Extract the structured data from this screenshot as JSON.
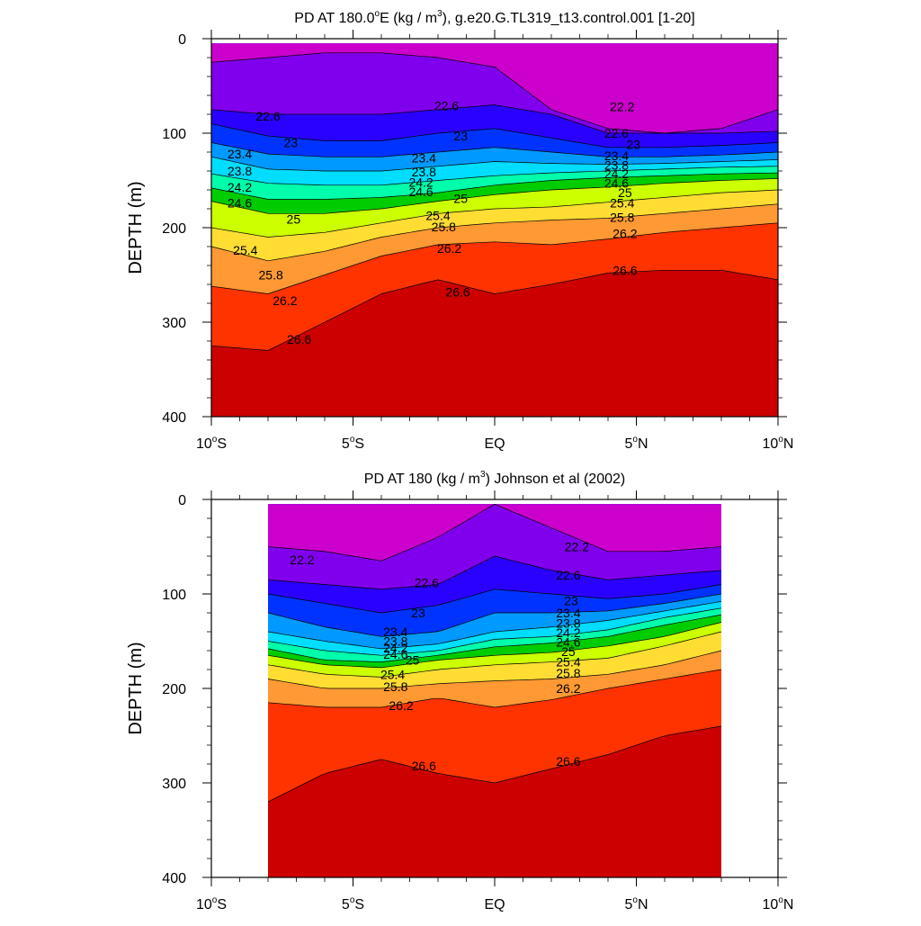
{
  "chart_data": [
    {
      "type": "contour",
      "title": "PD AT 180.0°E (kg / m³), g.e20.G.TL319_t13.control.001 [1-20]",
      "title_parts": {
        "prefix": "PD AT 180.0",
        "deg": "o",
        "mid": "E (kg / m",
        "sup": "3",
        "suffix": "), g.e20.G.TL319_t13.control.001 [1-20]"
      },
      "ylabel": "DEPTH (m)",
      "xlabel": "",
      "xlim": [
        -10,
        10
      ],
      "ylim": [
        0,
        400
      ],
      "y_reversed": true,
      "x_ticks": [
        {
          "value": -10,
          "num": "10",
          "deg": "o",
          "hemi": "S"
        },
        {
          "value": -5,
          "num": "5",
          "deg": "o",
          "hemi": "S"
        },
        {
          "value": 0,
          "num": "EQ",
          "deg": "",
          "hemi": ""
        },
        {
          "value": 5,
          "num": "5",
          "deg": "o",
          "hemi": "N"
        },
        {
          "value": 10,
          "num": "10",
          "deg": "o",
          "hemi": "N"
        }
      ],
      "y_ticks": [
        0,
        100,
        200,
        300,
        400
      ],
      "data_extent_x": [
        -10,
        10
      ],
      "data_extent_y": [
        5,
        400
      ],
      "contour_levels": [
        22.0,
        22.2,
        22.4,
        22.6,
        22.8,
        23.0,
        23.2,
        23.4,
        23.6,
        23.8,
        24.0,
        24.2,
        24.4,
        24.6,
        24.8,
        25.0,
        25.2,
        25.4,
        25.6,
        25.8,
        26.0,
        26.2,
        26.4,
        26.6
      ],
      "field": {
        "x": [
          -10,
          -8,
          -6,
          -4,
          -2,
          0,
          2,
          4,
          6,
          8,
          10
        ],
        "isopycnal_depths": {
          "22.2": [
            25,
            20,
            15,
            15,
            20,
            30,
            75,
            95,
            100,
            95,
            75
          ],
          "22.6": [
            75,
            80,
            80,
            80,
            75,
            70,
            80,
            100,
            100,
            100,
            98
          ],
          "23": [
            90,
            103,
            108,
            108,
            100,
            95,
            105,
            115,
            115,
            113,
            110
          ],
          "23.4": [
            110,
            122,
            125,
            125,
            120,
            115,
            120,
            125,
            125,
            123,
            120
          ],
          "23.8": [
            125,
            138,
            140,
            140,
            135,
            130,
            132,
            133,
            132,
            130,
            128
          ],
          "24.2": [
            143,
            153,
            155,
            155,
            150,
            145,
            142,
            140,
            138,
            136,
            135
          ],
          "24.6": [
            158,
            170,
            170,
            168,
            163,
            155,
            150,
            147,
            145,
            143,
            142
          ],
          "25": [
            172,
            185,
            185,
            180,
            172,
            165,
            160,
            157,
            153,
            150,
            148
          ],
          "25.4": [
            200,
            210,
            205,
            195,
            185,
            180,
            178,
            173,
            168,
            163,
            160
          ],
          "25.8": [
            220,
            235,
            225,
            210,
            200,
            195,
            192,
            190,
            185,
            180,
            175
          ],
          "26.2": [
            262,
            270,
            250,
            230,
            218,
            215,
            218,
            212,
            205,
            200,
            195
          ],
          "26.6": [
            325,
            330,
            300,
            270,
            255,
            270,
            260,
            248,
            245,
            245,
            255
          ]
        }
      },
      "contour_labels": [
        {
          "text": "22.6",
          "x": -8.0,
          "y": 82
        },
        {
          "text": "22.6",
          "x": -1.7,
          "y": 71
        },
        {
          "text": "22.2",
          "x": 4.5,
          "y": 72
        },
        {
          "text": "23",
          "x": -7.2,
          "y": 110
        },
        {
          "text": "23",
          "x": -1.2,
          "y": 103
        },
        {
          "text": "22.6",
          "x": 4.3,
          "y": 100
        },
        {
          "text": "23.4",
          "x": -9.0,
          "y": 122
        },
        {
          "text": "23.4",
          "x": -2.5,
          "y": 126
        },
        {
          "text": "23",
          "x": 4.9,
          "y": 112
        },
        {
          "text": "23.8",
          "x": -9.0,
          "y": 140
        },
        {
          "text": "23.8",
          "x": -2.5,
          "y": 141
        },
        {
          "text": "23.4",
          "x": 4.3,
          "y": 124
        },
        {
          "text": "23.8",
          "x": 4.3,
          "y": 134
        },
        {
          "text": "24.2",
          "x": -9.0,
          "y": 157
        },
        {
          "text": "24.2",
          "x": -2.6,
          "y": 152
        },
        {
          "text": "24.2",
          "x": 4.3,
          "y": 143
        },
        {
          "text": "24.6",
          "x": -9.0,
          "y": 174
        },
        {
          "text": "24.6",
          "x": -2.6,
          "y": 162
        },
        {
          "text": "24.6",
          "x": 4.3,
          "y": 153
        },
        {
          "text": "25",
          "x": -1.2,
          "y": 169
        },
        {
          "text": "25",
          "x": 4.6,
          "y": 163
        },
        {
          "text": "25",
          "x": -7.1,
          "y": 191
        },
        {
          "text": "25.4",
          "x": -2.0,
          "y": 187
        },
        {
          "text": "25.4",
          "x": 4.5,
          "y": 174
        },
        {
          "text": "25.8",
          "x": -1.8,
          "y": 199
        },
        {
          "text": "25.8",
          "x": 4.5,
          "y": 189
        },
        {
          "text": "25.4",
          "x": -8.8,
          "y": 224
        },
        {
          "text": "25.8",
          "x": -7.9,
          "y": 250
        },
        {
          "text": "26.2",
          "x": -1.6,
          "y": 222
        },
        {
          "text": "26.2",
          "x": 4.6,
          "y": 206
        },
        {
          "text": "26.2",
          "x": -7.4,
          "y": 277
        },
        {
          "text": "26.6",
          "x": -1.3,
          "y": 268
        },
        {
          "text": "26.6",
          "x": 4.6,
          "y": 245
        },
        {
          "text": "26.6",
          "x": -6.9,
          "y": 318
        }
      ]
    },
    {
      "type": "contour",
      "title": "PD AT 180 (kg / m³) Johnson et al (2002)",
      "title_parts": {
        "prefix": "PD AT 180 (kg / m",
        "sup": "3",
        "suffix": ") Johnson et al (2002)"
      },
      "ylabel": "DEPTH (m)",
      "xlabel": "",
      "xlim": [
        -10,
        10
      ],
      "ylim": [
        0,
        400
      ],
      "y_reversed": true,
      "x_ticks": [
        {
          "value": -10,
          "num": "10",
          "deg": "o",
          "hemi": "S"
        },
        {
          "value": -5,
          "num": "5",
          "deg": "o",
          "hemi": "S"
        },
        {
          "value": 0,
          "num": "EQ",
          "deg": "",
          "hemi": ""
        },
        {
          "value": 5,
          "num": "5",
          "deg": "o",
          "hemi": "N"
        },
        {
          "value": 10,
          "num": "10",
          "deg": "o",
          "hemi": "N"
        }
      ],
      "y_ticks": [
        0,
        100,
        200,
        300,
        400
      ],
      "data_extent_x": [
        -8,
        8
      ],
      "data_extent_y": [
        5,
        400
      ],
      "contour_levels": [
        22.0,
        22.2,
        22.4,
        22.6,
        22.8,
        23.0,
        23.2,
        23.4,
        23.6,
        23.8,
        24.0,
        24.2,
        24.4,
        24.6,
        24.8,
        25.0,
        25.2,
        25.4,
        25.6,
        25.8,
        26.0,
        26.2,
        26.4,
        26.6
      ],
      "field": {
        "x": [
          -8,
          -6,
          -4,
          -2,
          0,
          2,
          4,
          6,
          8
        ],
        "isopycnal_depths": {
          "22.2": [
            50,
            55,
            65,
            40,
            5,
            30,
            55,
            55,
            50
          ],
          "22.6": [
            85,
            90,
            95,
            90,
            60,
            75,
            85,
            80,
            75
          ],
          "23": [
            100,
            110,
            120,
            112,
            95,
            100,
            105,
            100,
            90
          ],
          "23.4": [
            120,
            135,
            145,
            140,
            120,
            120,
            118,
            110,
            100
          ],
          "23.8": [
            140,
            150,
            158,
            153,
            140,
            135,
            128,
            118,
            108
          ],
          "24.2": [
            150,
            160,
            165,
            160,
            148,
            145,
            138,
            125,
            115
          ],
          "24.6": [
            158,
            170,
            172,
            165,
            156,
            152,
            145,
            133,
            122
          ],
          "25": [
            165,
            175,
            178,
            170,
            165,
            162,
            155,
            145,
            130
          ],
          "25.4": [
            175,
            185,
            188,
            180,
            175,
            172,
            168,
            155,
            140
          ],
          "25.8": [
            190,
            200,
            200,
            195,
            192,
            190,
            185,
            175,
            160
          ],
          "26.2": [
            215,
            220,
            220,
            210,
            220,
            212,
            200,
            190,
            180
          ],
          "26.6": [
            320,
            290,
            275,
            290,
            300,
            285,
            270,
            250,
            240
          ]
        }
      },
      "contour_labels": [
        {
          "text": "22.2",
          "x": -6.8,
          "y": 64
        },
        {
          "text": "22.2",
          "x": 2.9,
          "y": 50
        },
        {
          "text": "22.6",
          "x": -2.4,
          "y": 88
        },
        {
          "text": "22.6",
          "x": 2.6,
          "y": 80
        },
        {
          "text": "23",
          "x": -2.7,
          "y": 120
        },
        {
          "text": "23",
          "x": 2.7,
          "y": 107
        },
        {
          "text": "23.4",
          "x": -3.5,
          "y": 140
        },
        {
          "text": "23.4",
          "x": 2.6,
          "y": 120
        },
        {
          "text": "23.8",
          "x": -3.5,
          "y": 150
        },
        {
          "text": "23.8",
          "x": 2.6,
          "y": 131
        },
        {
          "text": "24.2",
          "x": -3.5,
          "y": 157
        },
        {
          "text": "24.2",
          "x": 2.6,
          "y": 141
        },
        {
          "text": "24.6",
          "x": -3.5,
          "y": 164
        },
        {
          "text": "24.6",
          "x": 2.6,
          "y": 151
        },
        {
          "text": "25",
          "x": -2.9,
          "y": 170
        },
        {
          "text": "25",
          "x": 2.6,
          "y": 161
        },
        {
          "text": "25.4",
          "x": -3.6,
          "y": 185
        },
        {
          "text": "25.4",
          "x": 2.6,
          "y": 172
        },
        {
          "text": "25.8",
          "x": -3.5,
          "y": 198
        },
        {
          "text": "25.8",
          "x": 2.6,
          "y": 184
        },
        {
          "text": "26.2",
          "x": -3.3,
          "y": 218
        },
        {
          "text": "26.2",
          "x": 2.6,
          "y": 200
        },
        {
          "text": "26.6",
          "x": -2.5,
          "y": 282
        },
        {
          "text": "26.6",
          "x": 2.6,
          "y": 277
        }
      ]
    }
  ]
}
